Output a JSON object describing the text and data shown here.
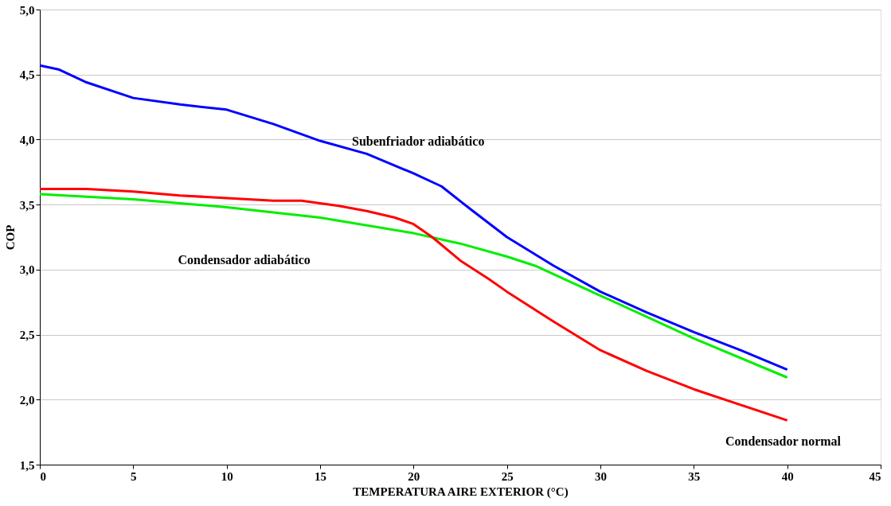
{
  "chart_data": {
    "type": "line",
    "xlabel": "TEMPERATURA AIRE EXTERIOR (°C)",
    "ylabel": "COP",
    "xlim": [
      0,
      45
    ],
    "xticks": [
      0,
      5,
      10,
      15,
      20,
      25,
      30,
      35,
      40,
      45
    ],
    "ylim": [
      1.5,
      5.0
    ],
    "yticks": [
      {
        "value": 1.5,
        "label": "1,5"
      },
      {
        "value": 2.0,
        "label": "2,0"
      },
      {
        "value": 2.5,
        "label": "2,5"
      },
      {
        "value": 3.0,
        "label": "3,0"
      },
      {
        "value": 3.5,
        "label": "3,5"
      },
      {
        "value": 4.0,
        "label": "4,0"
      },
      {
        "value": 4.5,
        "label": "4,5"
      },
      {
        "value": 5.0,
        "label": "5,0"
      }
    ],
    "grid": "y",
    "legend": false,
    "marker": "none",
    "line_style": "solid",
    "series": [
      {
        "name": "Subenfriador adiabático",
        "color": "#0000ff",
        "x": [
          0,
          1,
          2.5,
          5,
          7.5,
          10,
          12.5,
          15,
          17.5,
          20,
          21.5,
          23,
          25,
          27.5,
          30,
          32.5,
          35,
          37.5,
          40
        ],
        "values": [
          4.57,
          4.54,
          4.44,
          4.32,
          4.27,
          4.23,
          4.12,
          3.99,
          3.89,
          3.74,
          3.64,
          3.47,
          3.25,
          3.03,
          2.83,
          2.67,
          2.52,
          2.38,
          2.23
        ]
      },
      {
        "name": "Condensador adiabático",
        "color": "#00ee00",
        "x": [
          0,
          5,
          10,
          15,
          20,
          22.5,
          25,
          26.5,
          30,
          35,
          40
        ],
        "values": [
          3.58,
          3.54,
          3.48,
          3.4,
          3.28,
          3.2,
          3.1,
          3.03,
          2.8,
          2.47,
          2.17
        ]
      },
      {
        "name": "Condensador normal",
        "color": "#ff0000",
        "x": [
          0,
          2.5,
          5,
          7.5,
          10,
          12.5,
          14,
          16,
          17.5,
          19,
          20,
          21,
          22.5,
          24,
          25,
          27.5,
          30,
          32.5,
          35,
          37.5,
          40
        ],
        "values": [
          3.62,
          3.62,
          3.6,
          3.57,
          3.55,
          3.53,
          3.53,
          3.49,
          3.45,
          3.4,
          3.35,
          3.25,
          3.07,
          2.93,
          2.83,
          2.6,
          2.38,
          2.22,
          2.08,
          1.96,
          1.84
        ]
      }
    ]
  }
}
